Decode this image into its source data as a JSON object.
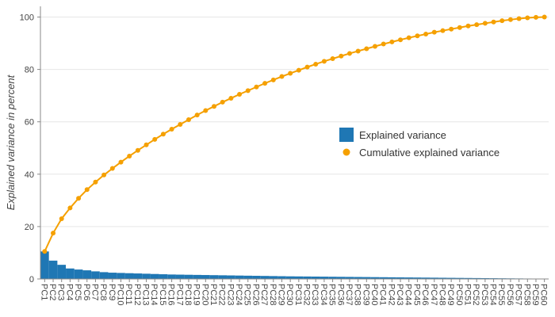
{
  "chart_data": {
    "type": "bar",
    "ylabel": "Explained variance in percent",
    "xlabel": "",
    "ylim": [
      0,
      102
    ],
    "y_ticks": [
      0,
      20,
      40,
      60,
      80,
      100
    ],
    "grid": "horizontal",
    "legend_placement": "center-right",
    "categories": [
      "PC1",
      "PC2",
      "PC3",
      "PC4",
      "PC5",
      "PC6",
      "PC7",
      "PC8",
      "PC9",
      "PC10",
      "PC11",
      "PC12",
      "PC13",
      "PC14",
      "PC15",
      "PC16",
      "PC17",
      "PC18",
      "PC19",
      "PC20",
      "PC21",
      "PC22",
      "PC23",
      "PC24",
      "PC25",
      "PC26",
      "PC27",
      "PC28",
      "PC29",
      "PC30",
      "PC31",
      "PC32",
      "PC33",
      "PC34",
      "PC35",
      "PC36",
      "PC37",
      "PC38",
      "PC39",
      "PC40",
      "PC41",
      "PC42",
      "PC43",
      "PC44",
      "PC45",
      "PC46",
      "PC47",
      "PC48",
      "PC49",
      "PC50",
      "PC51",
      "PC52",
      "PC53",
      "PC54",
      "PC55",
      "PC56",
      "PC57",
      "PC58",
      "PC59",
      "PC60"
    ],
    "series": [
      {
        "name": "Explained variance",
        "kind": "bar",
        "color": "#1f77b4",
        "values": [
          10.5,
          7.0,
          5.4,
          4.0,
          3.6,
          3.3,
          2.9,
          2.6,
          2.4,
          2.3,
          2.2,
          2.1,
          2.0,
          1.9,
          1.8,
          1.7,
          1.65,
          1.6,
          1.55,
          1.5,
          1.45,
          1.4,
          1.35,
          1.3,
          1.25,
          1.2,
          1.15,
          1.1,
          1.05,
          1.0,
          0.97,
          0.94,
          0.91,
          0.88,
          0.85,
          0.82,
          0.79,
          0.76,
          0.73,
          0.7,
          0.67,
          0.64,
          0.61,
          0.58,
          0.55,
          0.52,
          0.49,
          0.46,
          0.43,
          0.4,
          0.37,
          0.34,
          0.31,
          0.28,
          0.25,
          0.22,
          0.19,
          0.16,
          0.13,
          0.1
        ]
      },
      {
        "name": "Cumulative explained variance",
        "kind": "line",
        "color": "#f5a000",
        "values": [
          10.5,
          17.5,
          23.0,
          27.1,
          30.8,
          34.1,
          37.0,
          39.7,
          42.2,
          44.6,
          46.9,
          49.1,
          51.2,
          53.3,
          55.3,
          57.2,
          59.0,
          60.8,
          62.6,
          64.3,
          65.9,
          67.5,
          69.0,
          70.5,
          71.9,
          73.3,
          74.7,
          76.0,
          77.3,
          78.5,
          79.7,
          80.9,
          82.0,
          83.1,
          84.1,
          85.1,
          86.1,
          87.0,
          87.9,
          88.8,
          89.7,
          90.5,
          91.3,
          92.1,
          92.8,
          93.5,
          94.2,
          94.8,
          95.4,
          96.0,
          96.6,
          97.1,
          97.6,
          98.1,
          98.6,
          99.0,
          99.4,
          99.7,
          99.9,
          100.0
        ]
      }
    ]
  }
}
